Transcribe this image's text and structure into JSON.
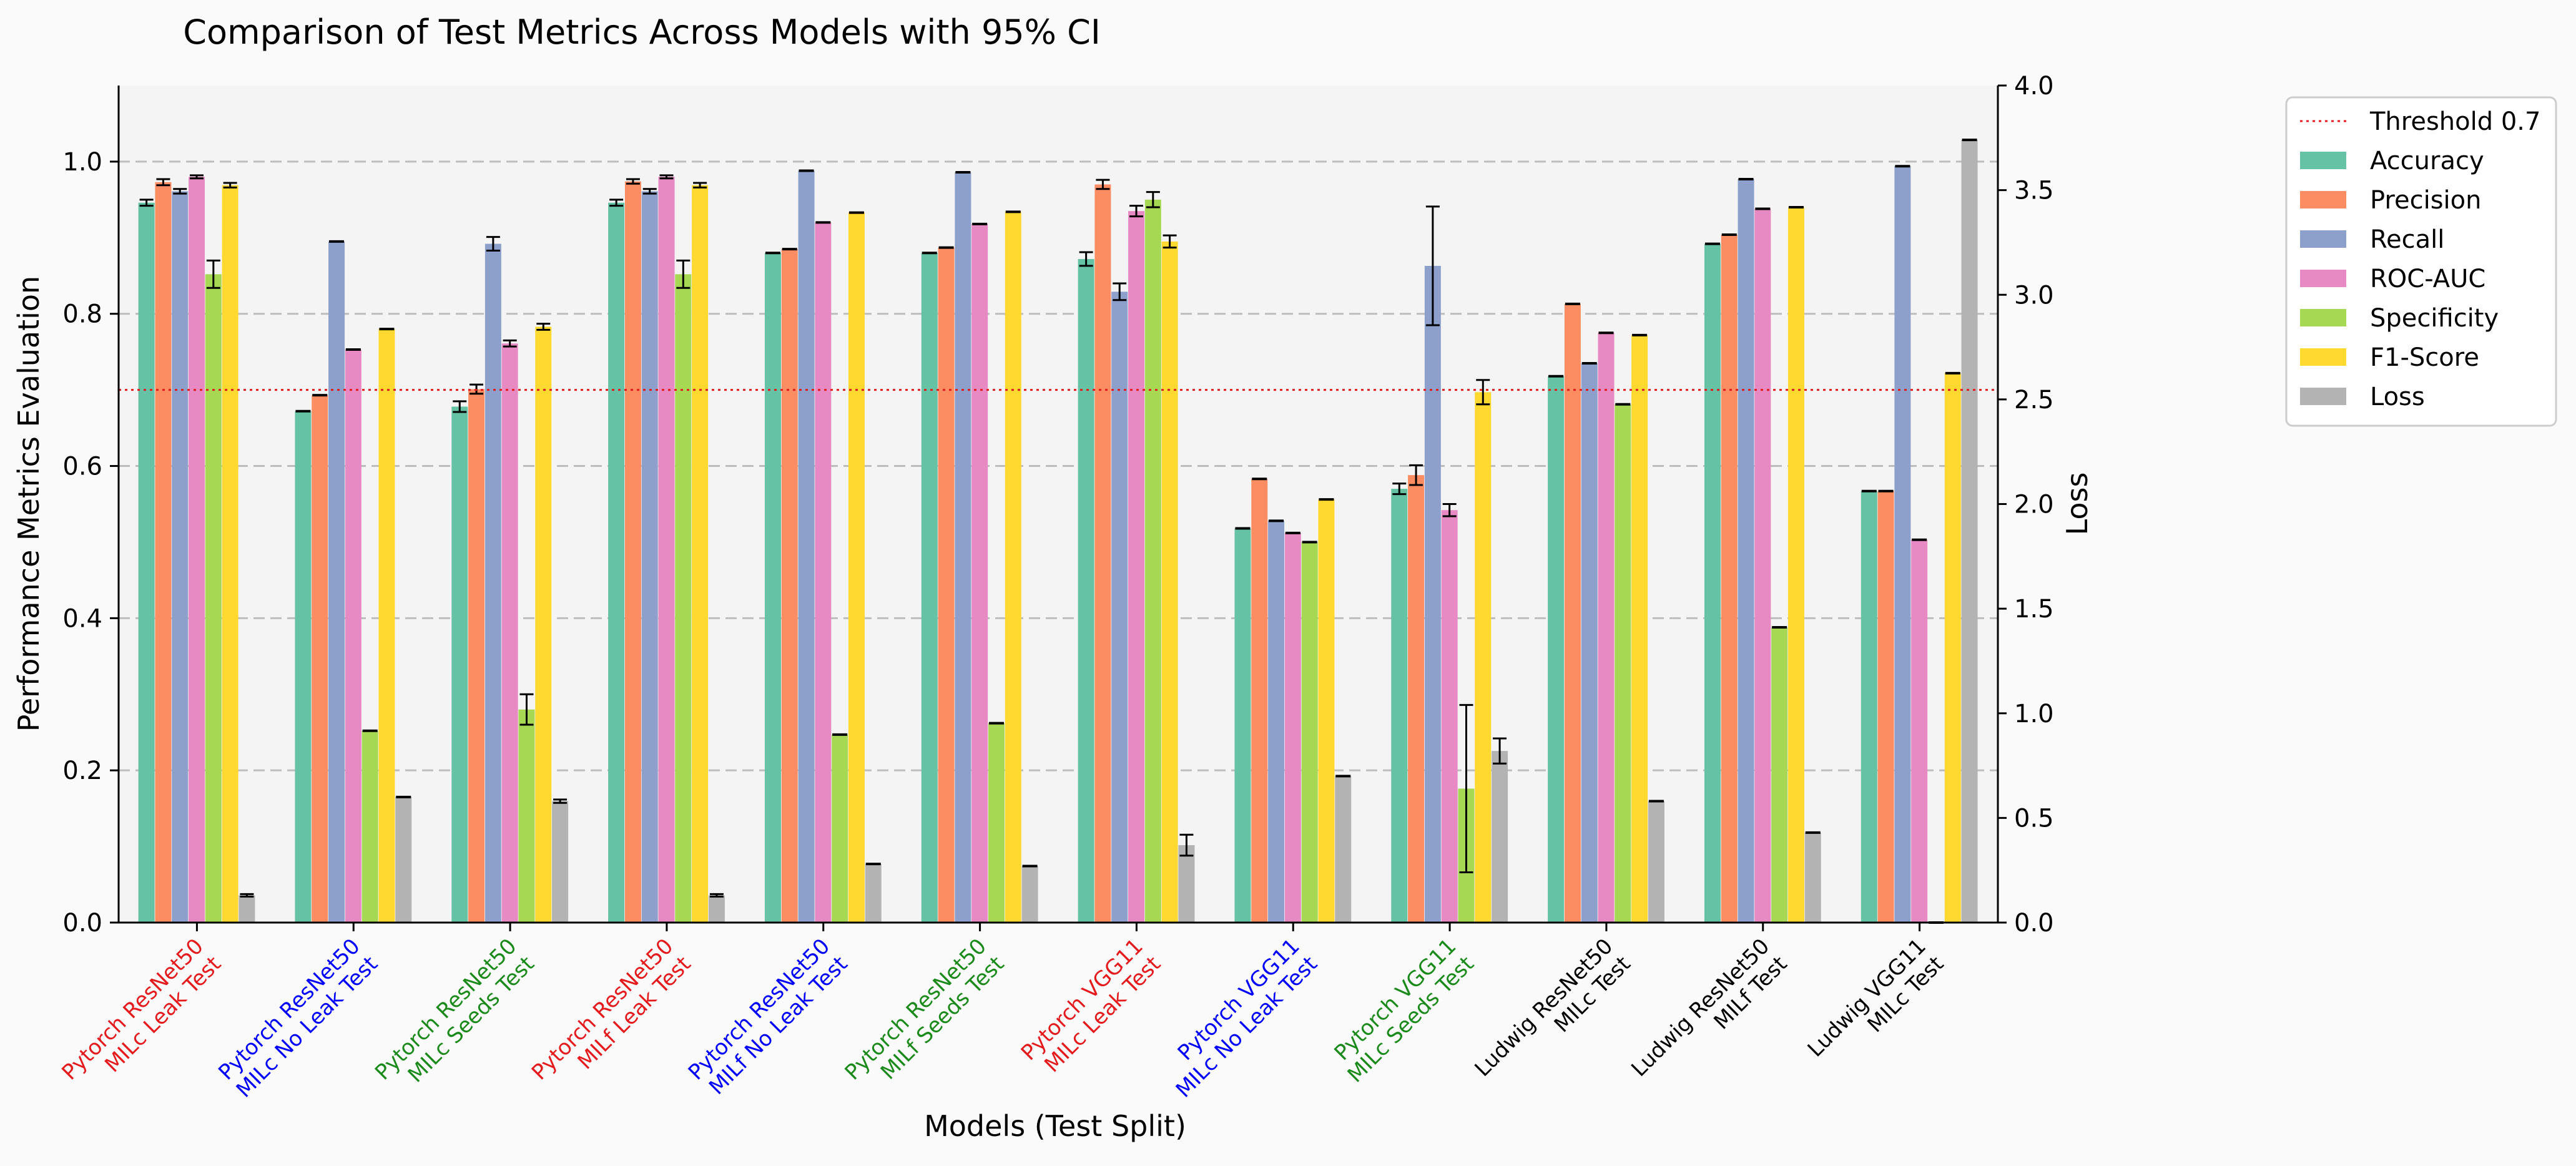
{
  "chart_data": {
    "type": "bar",
    "title": "Comparison of Test Metrics Across Models with 95% CI",
    "xlabel": "Models (Test Split)",
    "ylabel": "Performance Metrics Evaluation",
    "y2label": "Loss",
    "ylim": [
      0,
      1.1
    ],
    "y2lim": [
      0,
      4.0
    ],
    "yticks": [
      "0.0",
      "0.2",
      "0.4",
      "0.6",
      "0.8",
      "1.0"
    ],
    "y2ticks": [
      "0.0",
      "0.5",
      "1.0",
      "1.5",
      "2.0",
      "2.5",
      "3.0",
      "3.5",
      "4.0"
    ],
    "grid": "horizontal dashed",
    "legend_position": "outside right, top",
    "threshold": {
      "label": "Threshold 0.7",
      "value": 0.7,
      "color": "#e41a1c"
    },
    "categories": [
      {
        "line1": "Pytorch ResNet50",
        "line2": "MILc Leak Test",
        "color": "#e41a1c"
      },
      {
        "line1": "Pytorch ResNet50",
        "line2": "MILc No Leak Test",
        "color": "#0000ff"
      },
      {
        "line1": "Pytorch ResNet50",
        "line2": "MILc Seeds Test",
        "color": "#1a8a1a"
      },
      {
        "line1": "Pytorch ResNet50",
        "line2": "MILf Leak Test",
        "color": "#e41a1c"
      },
      {
        "line1": "Pytorch ResNet50",
        "line2": "MILf No Leak Test",
        "color": "#0000ff"
      },
      {
        "line1": "Pytorch ResNet50",
        "line2": "MILf Seeds Test",
        "color": "#1a8a1a"
      },
      {
        "line1": "Pytorch VGG11",
        "line2": "MILc Leak Test",
        "color": "#e41a1c"
      },
      {
        "line1": "Pytorch VGG11",
        "line2": "MILc No Leak Test",
        "color": "#0000ff"
      },
      {
        "line1": "Pytorch VGG11",
        "line2": "MILc Seeds Test",
        "color": "#1a8a1a"
      },
      {
        "line1": "Ludwig ResNet50",
        "line2": "MILc Test",
        "color": "#000000"
      },
      {
        "line1": "Ludwig ResNet50",
        "line2": "MILf Test",
        "color": "#000000"
      },
      {
        "line1": "Ludwig VGG11",
        "line2": "MILc Test",
        "color": "#000000"
      }
    ],
    "series": [
      {
        "name": "Accuracy",
        "color": "#66c2a5",
        "axis": "left",
        "values": [
          0.946,
          0.672,
          0.678,
          0.946,
          0.88,
          0.88,
          0.872,
          0.518,
          0.57,
          0.718,
          0.892,
          0.567
        ],
        "ci": [
          0.004,
          0,
          0.007,
          0.004,
          0,
          0,
          0.009,
          0,
          0.007,
          0,
          0,
          0
        ]
      },
      {
        "name": "Precision",
        "color": "#fc8d62",
        "axis": "left",
        "values": [
          0.973,
          0.693,
          0.701,
          0.974,
          0.885,
          0.887,
          0.97,
          0.583,
          0.588,
          0.813,
          0.904,
          0.567
        ],
        "ci": [
          0.004,
          0,
          0.006,
          0.003,
          0,
          0,
          0.006,
          0,
          0.013,
          0,
          0,
          0
        ]
      },
      {
        "name": "Recall",
        "color": "#8da0cb",
        "axis": "left",
        "values": [
          0.961,
          0.895,
          0.892,
          0.961,
          0.988,
          0.986,
          0.829,
          0.528,
          0.863,
          0.735,
          0.977,
          0.994
        ],
        "ci": [
          0.003,
          0,
          0.009,
          0.003,
          0,
          0,
          0.011,
          0,
          0.078,
          0,
          0,
          0
        ]
      },
      {
        "name": "ROC-AUC",
        "color": "#e78ac3",
        "axis": "left",
        "values": [
          0.98,
          0.753,
          0.761,
          0.98,
          0.92,
          0.918,
          0.935,
          0.512,
          0.542,
          0.775,
          0.938,
          0.503
        ],
        "ci": [
          0.002,
          0,
          0.004,
          0.002,
          0,
          0,
          0.007,
          0,
          0.008,
          0,
          0,
          0
        ]
      },
      {
        "name": "Specificity",
        "color": "#a6d854",
        "axis": "left",
        "values": [
          0.852,
          0.252,
          0.28,
          0.852,
          0.247,
          0.262,
          0.95,
          0.5,
          0.176,
          0.681,
          0.388,
          0.0
        ],
        "ci": [
          0.018,
          0,
          0.02,
          0.018,
          0,
          0,
          0.01,
          0,
          0.11,
          0,
          0,
          0
        ]
      },
      {
        "name": "F1-Score",
        "color": "#ffd92f",
        "axis": "left",
        "values": [
          0.969,
          0.78,
          0.783,
          0.969,
          0.933,
          0.934,
          0.895,
          0.556,
          0.697,
          0.772,
          0.94,
          0.722
        ],
        "ci": [
          0.003,
          0,
          0.004,
          0.003,
          0,
          0,
          0.008,
          0,
          0.016,
          0,
          0,
          0
        ]
      },
      {
        "name": "Loss",
        "color": "#b3b3b3",
        "axis": "right",
        "values": [
          0.13,
          0.6,
          0.58,
          0.13,
          0.28,
          0.27,
          0.37,
          0.7,
          0.82,
          0.58,
          0.43,
          3.74
        ],
        "ci": [
          0.006,
          0,
          0.008,
          0.006,
          0,
          0,
          0.05,
          0,
          0.06,
          0,
          0,
          0
        ]
      }
    ]
  }
}
